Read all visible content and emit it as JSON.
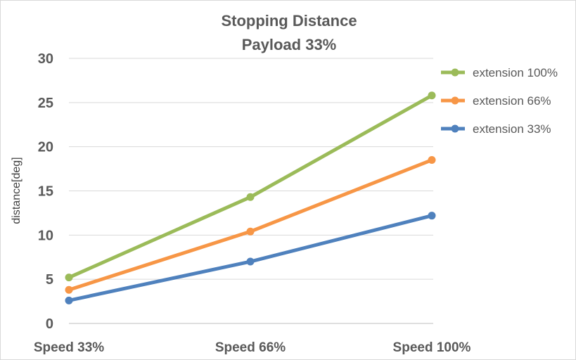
{
  "chart_data": {
    "type": "line",
    "title": "Stopping Distance",
    "subtitle": "Payload 33%",
    "xlabel": "",
    "ylabel": "distance[deg]",
    "categories": [
      "Speed 33%",
      "Speed 66%",
      "Speed 100%"
    ],
    "ylim": [
      0,
      30
    ],
    "yticks": [
      0,
      5,
      10,
      15,
      20,
      25,
      30
    ],
    "grid": true,
    "legend_placement": "right",
    "series": [
      {
        "name": "extension 100%",
        "color": "#9BBB59",
        "values": [
          5.2,
          14.3,
          25.8
        ]
      },
      {
        "name": "extension 66%",
        "color": "#F79646",
        "values": [
          3.8,
          10.4,
          18.5
        ]
      },
      {
        "name": "extension 33%",
        "color": "#4F81BD",
        "values": [
          2.6,
          7.0,
          12.2
        ]
      }
    ]
  }
}
